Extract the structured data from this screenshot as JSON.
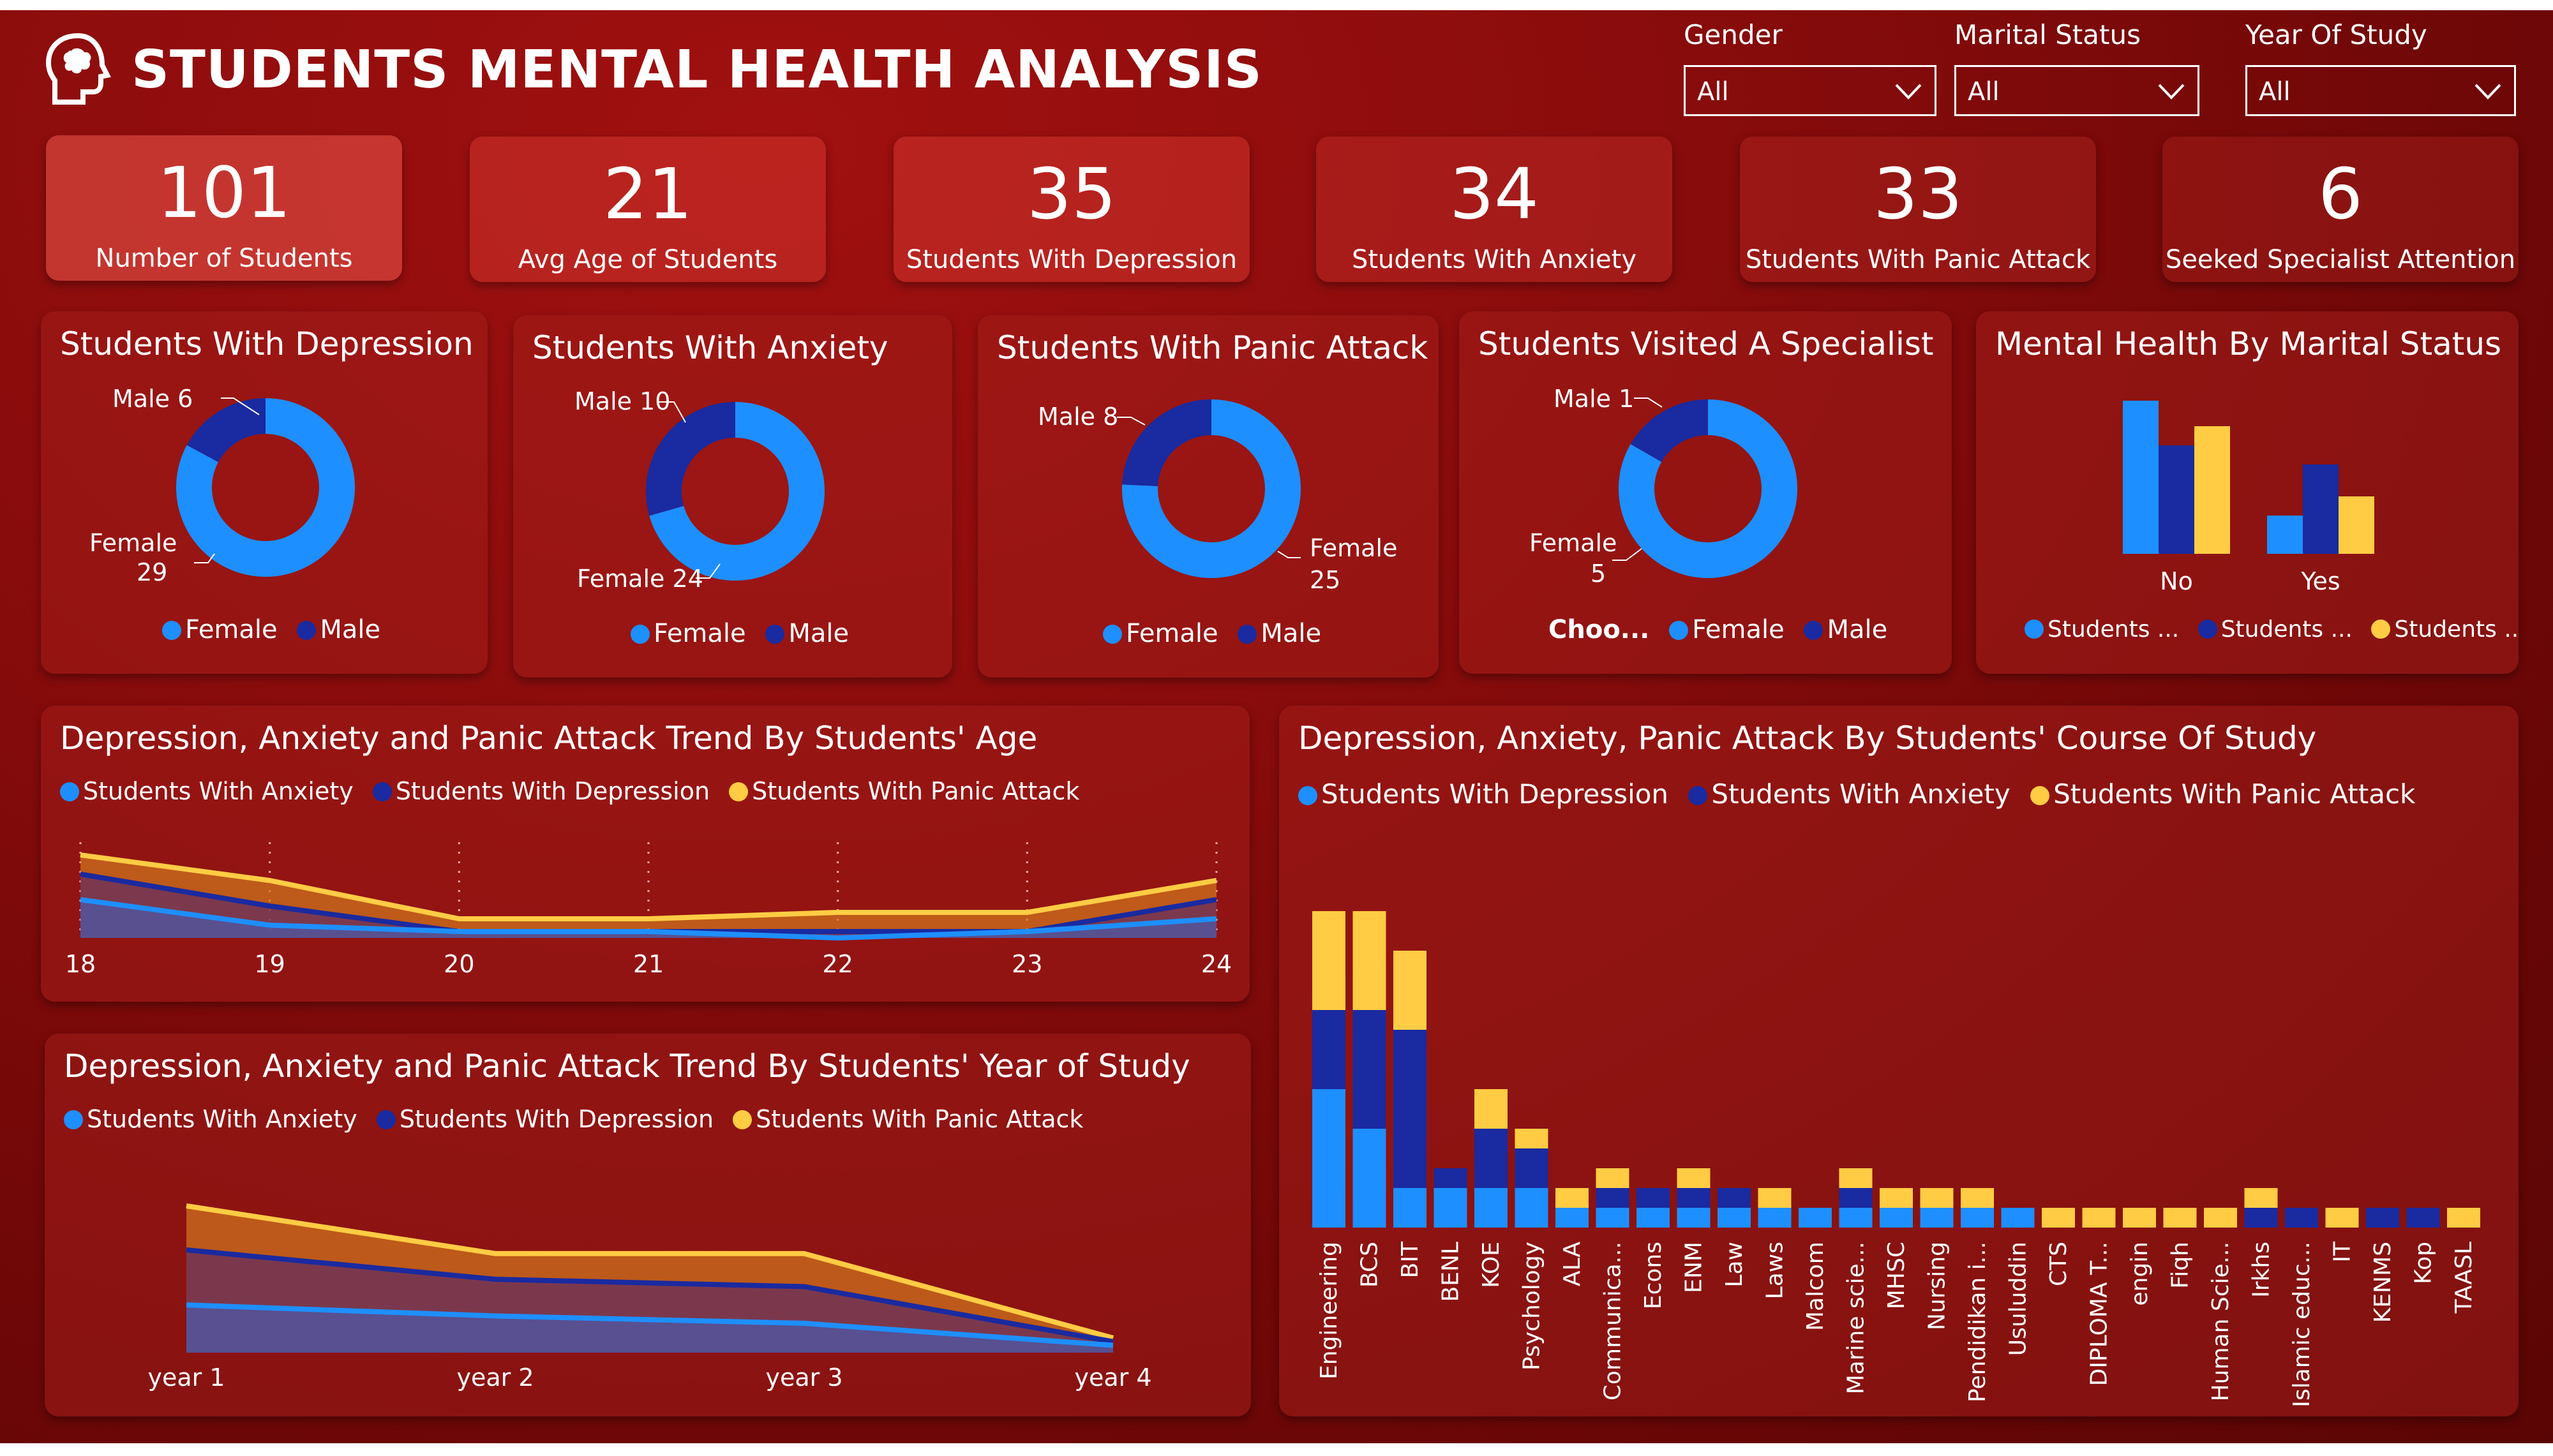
{
  "header": {
    "title": "STUDENTS MENTAL HEALTH ANALYSIS",
    "logo_icon": "head-brain-icon"
  },
  "slicers": [
    {
      "label": "Gender",
      "value": "All"
    },
    {
      "label": "Marital Status",
      "value": "All"
    },
    {
      "label": "Year Of Study",
      "value": "All"
    }
  ],
  "kpis": [
    {
      "value": "101",
      "label": "Number of Students"
    },
    {
      "value": "21",
      "label": "Avg Age of Students"
    },
    {
      "value": "35",
      "label": "Students With Depression"
    },
    {
      "value": "34",
      "label": "Students With Anxiety"
    },
    {
      "value": "33",
      "label": "Students With Panic Attack"
    },
    {
      "value": "6",
      "label": "Seeked Specialist Attention"
    }
  ],
  "colors": {
    "female": "#1e8fff",
    "male": "#1a2aa0",
    "panic": "#ffcc44",
    "anxiety": "#1e8fff",
    "depression": "#1a2aa0"
  },
  "donuts": [
    {
      "title": "Students With Depression",
      "female_label": "Female",
      "female_value": "29",
      "female": 29,
      "male_label": "Male",
      "male_value": "6",
      "male": 6,
      "legend": [
        "Female",
        "Male"
      ]
    },
    {
      "title": "Students With Anxiety",
      "female_label": "Female",
      "female_value": "24",
      "female": 24,
      "male_label": "Male",
      "male_value": "10",
      "male": 10,
      "legend": [
        "Female",
        "Male"
      ]
    },
    {
      "title": "Students With Panic Attack",
      "female_label": "Female",
      "female_value": "25",
      "female": 25,
      "male_label": "Male",
      "male_value": "8",
      "male": 8,
      "legend": [
        "Female",
        "Male"
      ]
    },
    {
      "title": "Students Visited A Specialist",
      "female_label": "Female",
      "female_value": "5",
      "female": 5,
      "male_label": "Male",
      "male_value": "1",
      "male": 1,
      "legend_prefix": "Choo...",
      "legend": [
        "Female",
        "Male"
      ]
    }
  ],
  "chart_data": [
    {
      "type": "bar",
      "title": "Mental Health By Marital Status",
      "categories": [
        "No",
        "Yes"
      ],
      "series": [
        {
          "values": [
            24,
            6
          ]
        },
        {
          "values": [
            17,
            14
          ]
        },
        {
          "values": [
            20,
            9
          ]
        }
      ],
      "legend": [
        "Students ...",
        "Students ...",
        "Students ..."
      ]
    },
    {
      "type": "area",
      "title": "Depression, Anxiety and Panic Attack Trend By Students' Age",
      "x": [
        "18",
        "19",
        "20",
        "21",
        "22",
        "23",
        "24"
      ],
      "series": [
        {
          "name": "Students With Anxiety",
          "values": [
            6,
            2,
            1,
            1,
            0,
            1,
            3
          ]
        },
        {
          "name": "Students With Depression",
          "values": [
            10,
            5,
            1,
            1,
            1,
            1,
            6
          ]
        },
        {
          "name": "Students With Panic Attack",
          "values": [
            13,
            9,
            3,
            3,
            4,
            4,
            9
          ]
        }
      ]
    },
    {
      "type": "area",
      "title": "Depression, Anxiety and Panic Attack Trend By Students' Year of Study",
      "x": [
        "year 1",
        "year 2",
        "year 3",
        "year 4"
      ],
      "series": [
        {
          "name": "Students With Anxiety",
          "values": [
            13,
            10,
            8,
            2
          ]
        },
        {
          "name": "Students With Depression",
          "values": [
            28,
            20,
            18,
            3
          ]
        },
        {
          "name": "Students With Panic Attack",
          "values": [
            40,
            27,
            27,
            4
          ]
        }
      ]
    },
    {
      "type": "bar",
      "stacked": true,
      "title": "Depression, Anxiety, Panic Attack By Students' Course Of Study",
      "categories": [
        "Engineering",
        "BCS",
        "BIT",
        "BENL",
        "KOE",
        "Psychology",
        "ALA",
        "Communica...",
        "Econs",
        "ENM",
        "Law",
        "Laws",
        "Malcom",
        "Marine scie...",
        "MHSC",
        "Nursing",
        "Pendidikan i...",
        "Usuluddin",
        "CTS",
        "DIPLOMA T...",
        "engin",
        "Fiqh",
        "Human Scie...",
        "Irkhs",
        "Islamic educ...",
        "IT",
        "KENMS",
        "Kop",
        "TAASL"
      ],
      "series": [
        {
          "name": "Students With Depression",
          "values": [
            7,
            5,
            2,
            2,
            2,
            2,
            1,
            1,
            1,
            1,
            1,
            1,
            1,
            1,
            1,
            1,
            1,
            1,
            0,
            0,
            0,
            0,
            0,
            0,
            0,
            0,
            0,
            0,
            0
          ]
        },
        {
          "name": "Students With Anxiety",
          "values": [
            4,
            6,
            8,
            1,
            3,
            2,
            0,
            1,
            1,
            1,
            1,
            0,
            0,
            1,
            0,
            0,
            0,
            0,
            0,
            0,
            0,
            0,
            0,
            1,
            1,
            0,
            1,
            1,
            0
          ]
        },
        {
          "name": "Students With Panic Attack",
          "values": [
            5,
            5,
            4,
            0,
            2,
            1,
            1,
            1,
            0,
            1,
            0,
            1,
            0,
            1,
            1,
            1,
            1,
            0,
            1,
            1,
            1,
            1,
            1,
            1,
            0,
            1,
            0,
            0,
            1
          ]
        }
      ]
    }
  ]
}
